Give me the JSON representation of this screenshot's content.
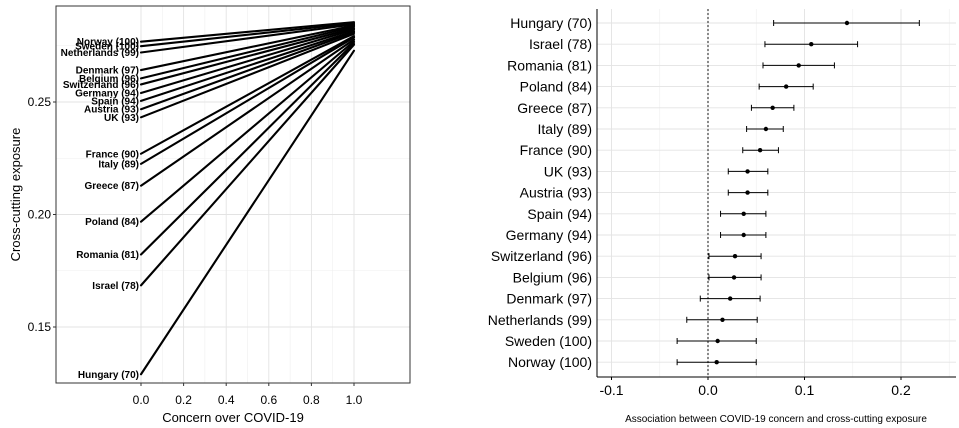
{
  "chart_data": [
    {
      "type": "line",
      "xlabel": "Concern over COVID-19",
      "ylabel": "Cross-cutting exposure",
      "xlim": [
        0,
        1
      ],
      "ylim": [
        0.125,
        0.288
      ],
      "x_ticks": [
        "0.0",
        "0.2",
        "0.4",
        "0.6",
        "0.8",
        "1.0"
      ],
      "y_ticks": [
        "0.15",
        "0.20",
        "0.25"
      ],
      "grid": true,
      "series": [
        {
          "name": "Norway (100)",
          "x": [
            0,
            1
          ],
          "y": [
            0.2768,
            0.2855
          ]
        },
        {
          "name": "Sweden (100)",
          "x": [
            0,
            1
          ],
          "y": [
            0.2748,
            0.285
          ]
        },
        {
          "name": "Netherlands (99)",
          "x": [
            0,
            1
          ],
          "y": [
            0.272,
            0.2845
          ]
        },
        {
          "name": "Denmark (97)",
          "x": [
            0,
            1
          ],
          "y": [
            0.2642,
            0.284
          ]
        },
        {
          "name": "Belgium (96)",
          "x": [
            0,
            1
          ],
          "y": [
            0.2605,
            0.2835
          ]
        },
        {
          "name": "Switzerland (96)",
          "x": [
            0,
            1
          ],
          "y": [
            0.2578,
            0.2828
          ]
        },
        {
          "name": "Germany (94)",
          "x": [
            0,
            1
          ],
          "y": [
            0.254,
            0.2822
          ]
        },
        {
          "name": "Spain (94)",
          "x": [
            0,
            1
          ],
          "y": [
            0.2505,
            0.2815
          ]
        },
        {
          "name": "Austria (93)",
          "x": [
            0,
            1
          ],
          "y": [
            0.2468,
            0.281
          ]
        },
        {
          "name": "UK (93)",
          "x": [
            0,
            1
          ],
          "y": [
            0.2432,
            0.2803
          ]
        },
        {
          "name": "France (90)",
          "x": [
            0,
            1
          ],
          "y": [
            0.227,
            0.2793
          ]
        },
        {
          "name": "Italy (89)",
          "x": [
            0,
            1
          ],
          "y": [
            0.2225,
            0.2787
          ]
        },
        {
          "name": "Greece (87)",
          "x": [
            0,
            1
          ],
          "y": [
            0.2128,
            0.2778
          ]
        },
        {
          "name": "Poland (84)",
          "x": [
            0,
            1
          ],
          "y": [
            0.1968,
            0.277
          ]
        },
        {
          "name": "Romania (81)",
          "x": [
            0,
            1
          ],
          "y": [
            0.1822,
            0.2762
          ]
        },
        {
          "name": "Israel (78)",
          "x": [
            0,
            1
          ],
          "y": [
            0.1685,
            0.2755
          ]
        },
        {
          "name": "Hungary (70)",
          "x": [
            0,
            1
          ],
          "y": [
            0.129,
            0.2728
          ]
        }
      ]
    },
    {
      "type": "scatter",
      "xlabel": "Association between COVID-19 concern and cross-cutting exposure",
      "ylabel": "",
      "xlim": [
        -0.125,
        0.26
      ],
      "x_ticks": [
        "-0.1",
        "0.0",
        "0.1",
        "0.2"
      ],
      "reference_line": 0.0,
      "grid": true,
      "categories": [
        "Hungary (70)",
        "Israel (78)",
        "Romania (81)",
        "Poland (84)",
        "Greece (87)",
        "Italy (89)",
        "France (90)",
        "UK (93)",
        "Austria (93)",
        "Spain (94)",
        "Germany (94)",
        "Switzerland (96)",
        "Belgium (96)",
        "Denmark (97)",
        "Netherlands (99)",
        "Sweden (100)",
        "Norway (100)"
      ],
      "estimates": [
        0.144,
        0.107,
        0.094,
        0.081,
        0.067,
        0.06,
        0.054,
        0.041,
        0.041,
        0.037,
        0.037,
        0.028,
        0.027,
        0.023,
        0.015,
        0.01,
        0.009
      ],
      "ci_low": [
        0.068,
        0.059,
        0.057,
        0.053,
        0.045,
        0.04,
        0.036,
        0.021,
        0.021,
        0.013,
        0.013,
        0.001,
        0.001,
        -0.008,
        -0.022,
        -0.032,
        -0.032
      ],
      "ci_high": [
        0.219,
        0.155,
        0.131,
        0.109,
        0.089,
        0.078,
        0.073,
        0.062,
        0.062,
        0.06,
        0.06,
        0.055,
        0.055,
        0.054,
        0.051,
        0.05,
        0.05
      ]
    }
  ]
}
